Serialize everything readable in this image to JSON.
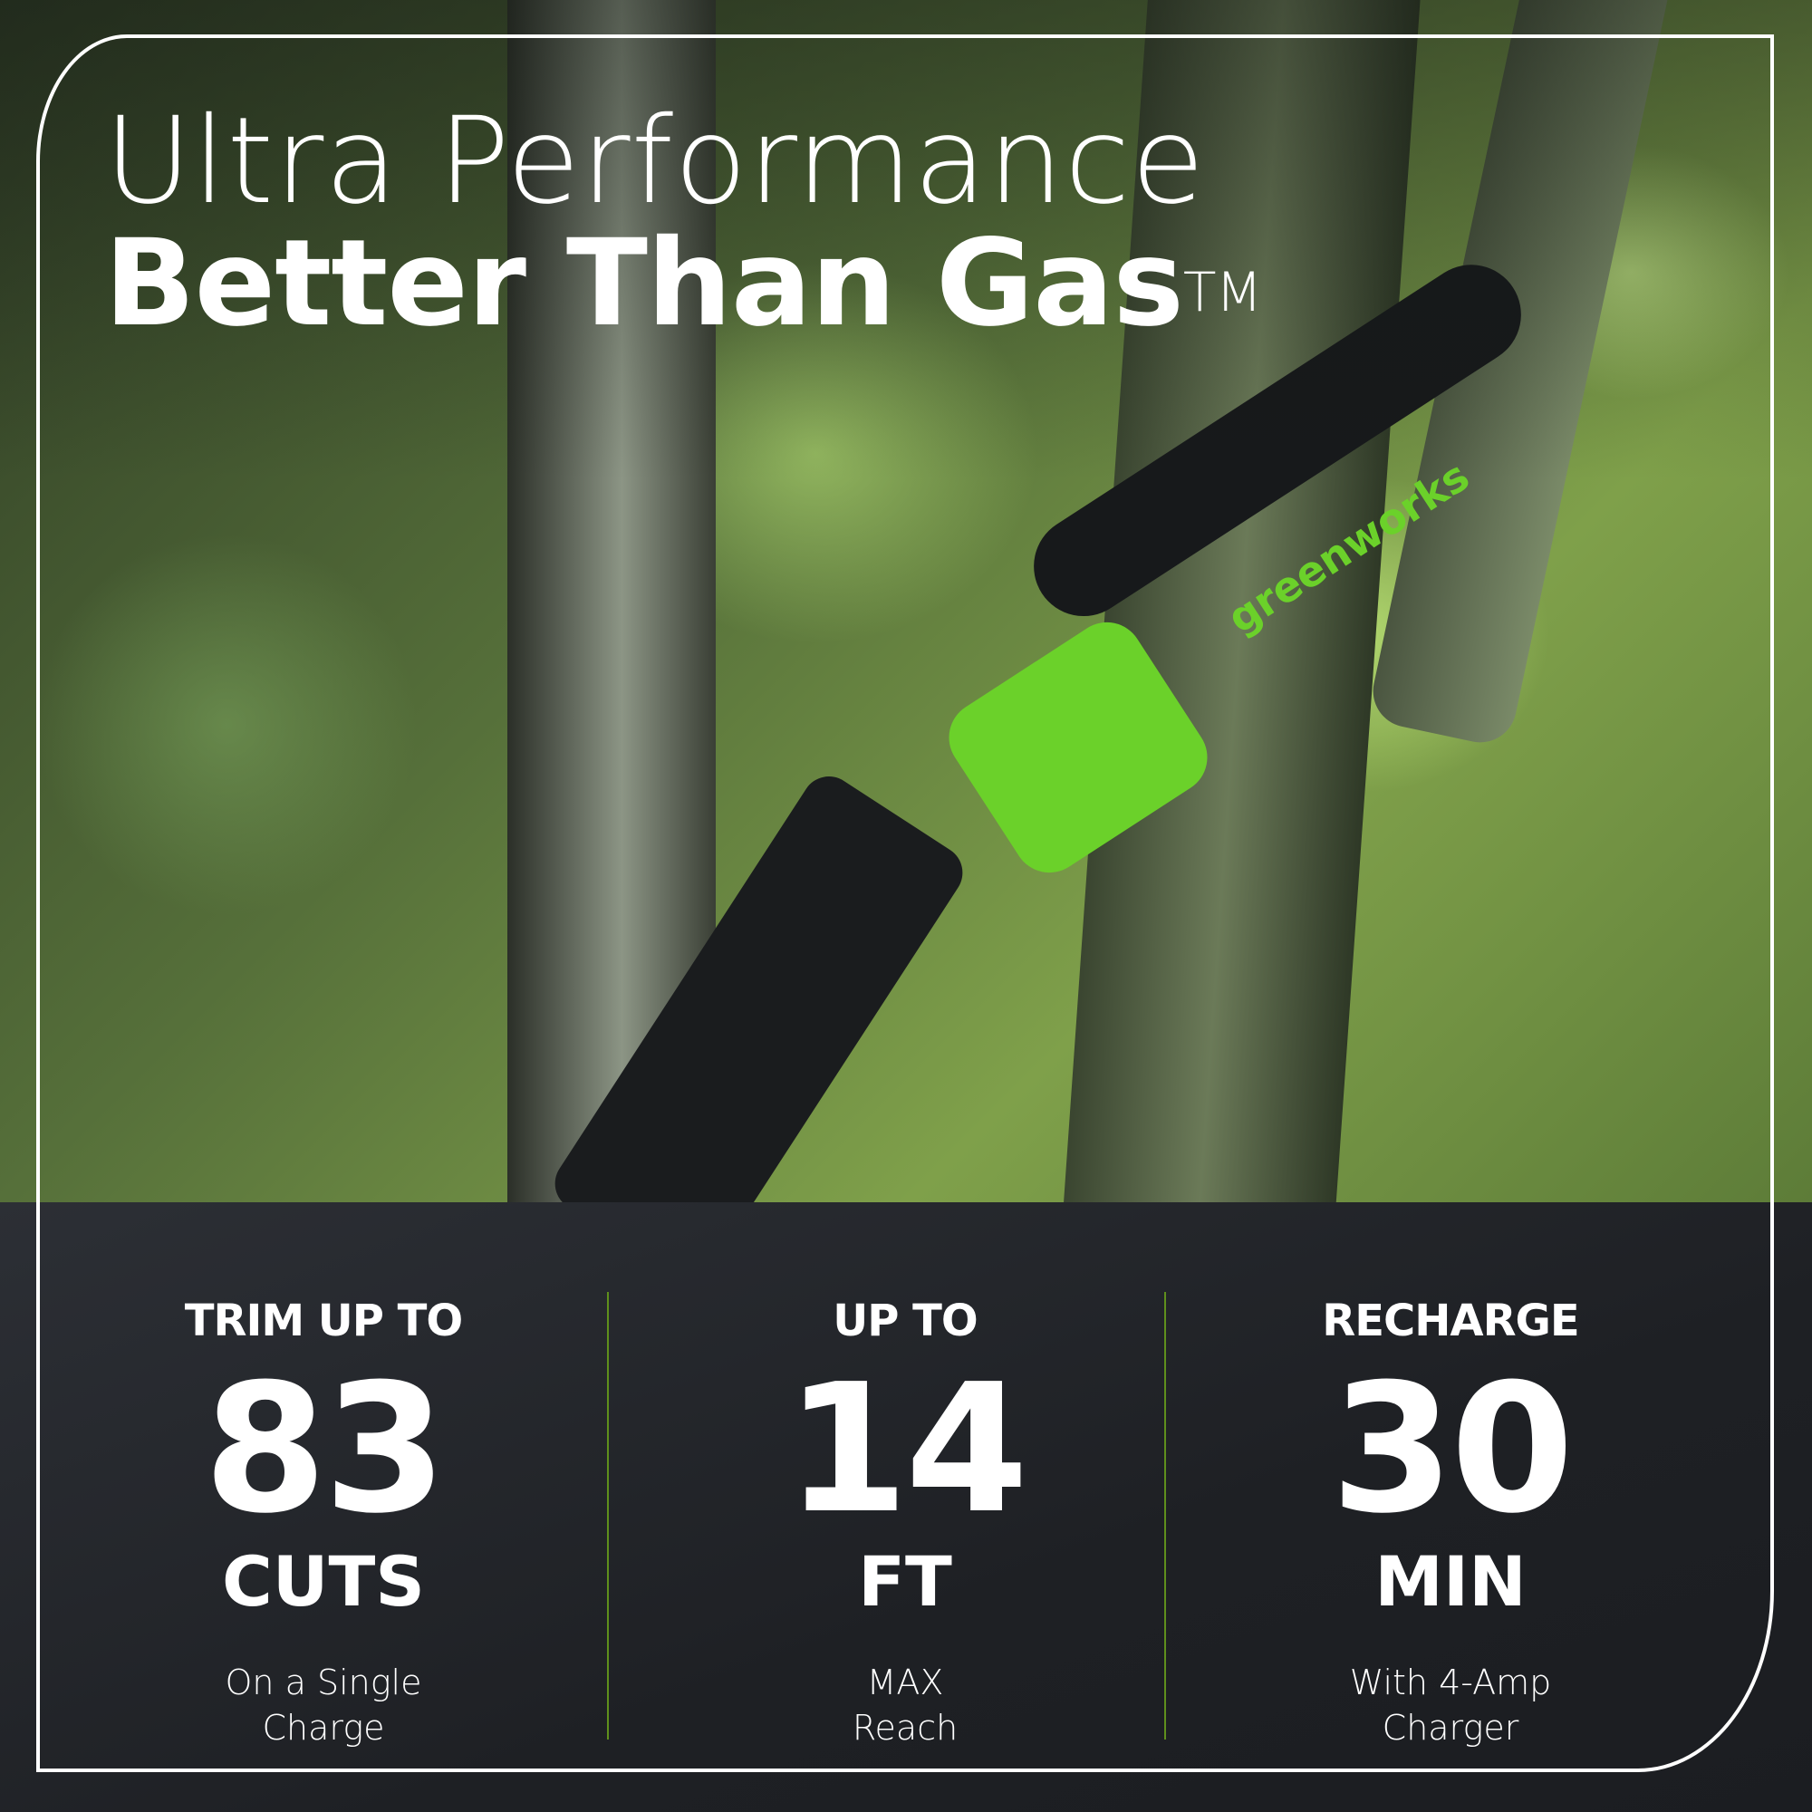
{
  "headline": {
    "line1": "Ultra Performance",
    "line2": "Better Than Gas",
    "trademark": "TM"
  },
  "product": {
    "brand_logo": "greenworks"
  },
  "stats": [
    {
      "label": "TRIM UP TO",
      "value": "83",
      "unit": "CUTS",
      "sub1": "On a Single",
      "sub2": "Charge"
    },
    {
      "label": "UP TO",
      "value": "14",
      "unit": "FT",
      "sub1": "MAX",
      "sub2": "Reach"
    },
    {
      "label": "RECHARGE",
      "value": "30",
      "unit": "MIN",
      "sub1": "With 4-Amp",
      "sub2": "Charger"
    }
  ],
  "colors": {
    "accent": "#6bd12a",
    "divider": "#5f8f1c",
    "panel": "#222429",
    "text": "#ffffff"
  }
}
